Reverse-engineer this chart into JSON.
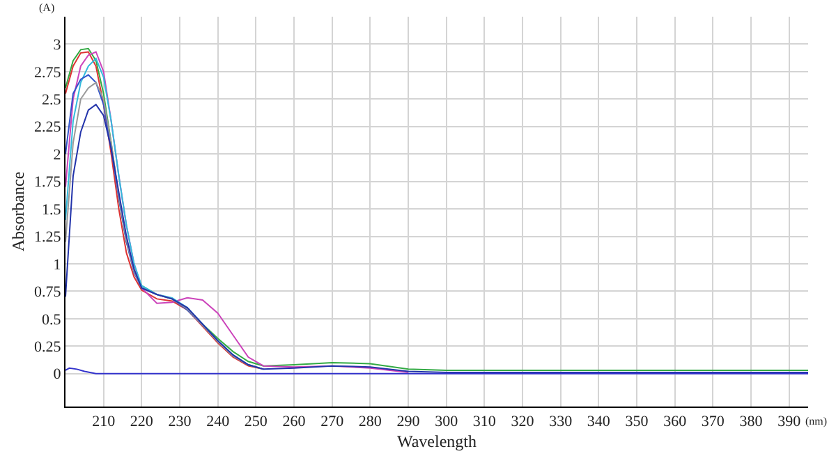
{
  "chart_data": {
    "type": "line",
    "xlabel": "Wavelength",
    "ylabel": "Absorbance",
    "annotations": [
      "(A)",
      "(nm)"
    ],
    "x": [
      200,
      202,
      204,
      206,
      208,
      210,
      212,
      214,
      216,
      218,
      220,
      224,
      228,
      232,
      236,
      240,
      244,
      248,
      252,
      260,
      270,
      280,
      290,
      300,
      340,
      395
    ],
    "series": [
      {
        "color": "#33aa44",
        "values": [
          2.6,
          2.85,
          2.95,
          2.96,
          2.85,
          2.55,
          2.1,
          1.6,
          1.2,
          0.95,
          0.8,
          0.72,
          0.68,
          0.58,
          0.45,
          0.32,
          0.2,
          0.11,
          0.07,
          0.08,
          0.1,
          0.09,
          0.04,
          0.03,
          0.03,
          0.03
        ]
      },
      {
        "color": "#dd3333",
        "values": [
          2.55,
          2.8,
          2.92,
          2.93,
          2.8,
          2.45,
          2.0,
          1.5,
          1.1,
          0.88,
          0.76,
          0.68,
          0.66,
          0.58,
          0.43,
          0.28,
          0.15,
          0.07,
          0.04,
          null,
          null,
          null,
          null,
          null,
          null,
          null
        ]
      },
      {
        "color": "#cc44bb",
        "values": [
          1.7,
          2.5,
          2.8,
          2.9,
          2.93,
          2.75,
          2.3,
          1.8,
          1.35,
          1.0,
          0.78,
          0.64,
          0.65,
          0.69,
          0.67,
          0.55,
          0.35,
          0.15,
          0.07,
          0.06,
          0.07,
          0.05,
          0.01,
          null,
          null,
          null
        ]
      },
      {
        "color": "#33bbdd",
        "values": [
          1.4,
          2.3,
          2.65,
          2.8,
          2.87,
          2.7,
          2.3,
          1.8,
          1.35,
          1.0,
          0.8,
          0.72,
          0.69,
          0.6,
          0.45,
          0.3,
          0.17,
          0.08,
          0.04,
          null,
          null,
          null,
          null,
          null,
          null,
          null
        ]
      },
      {
        "color": "#3355cc",
        "values": [
          2.0,
          2.55,
          2.68,
          2.72,
          2.65,
          2.45,
          2.05,
          1.6,
          1.2,
          0.92,
          0.78,
          0.72,
          0.68,
          0.58,
          0.44,
          0.29,
          0.16,
          0.08,
          0.04,
          null,
          null,
          null,
          null,
          null,
          null,
          null
        ]
      },
      {
        "color": "#999999",
        "values": [
          1.2,
          2.1,
          2.5,
          2.6,
          2.65,
          2.5,
          2.1,
          1.62,
          1.22,
          0.93,
          0.78,
          0.72,
          0.68,
          0.59,
          0.44,
          0.29,
          0.16,
          0.08,
          0.04,
          null,
          null,
          null,
          null,
          null,
          null,
          null
        ]
      },
      {
        "color": "#2233aa",
        "values": [
          0.7,
          1.8,
          2.2,
          2.4,
          2.45,
          2.35,
          2.05,
          1.65,
          1.25,
          0.95,
          0.78,
          0.72,
          0.68,
          0.6,
          0.45,
          0.3,
          0.17,
          0.08,
          0.04,
          0.05,
          0.07,
          0.06,
          0.02,
          0.01,
          0.01,
          0.01
        ]
      },
      {
        "color": "#3333cc",
        "x": [
          200,
          201,
          203,
          205,
          208,
          395
        ],
        "values": [
          0.03,
          0.05,
          0.04,
          0.02,
          0,
          0
        ]
      }
    ],
    "xlim": [
      200,
      395
    ],
    "ylim": [
      -0.3,
      3.25
    ],
    "xticks": [
      210,
      220,
      230,
      240,
      250,
      260,
      270,
      280,
      290,
      300,
      310,
      320,
      330,
      340,
      350,
      360,
      370,
      380,
      390
    ],
    "yticks": [
      0,
      0.25,
      0.5,
      0.75,
      1,
      1.25,
      1.5,
      1.75,
      2,
      2.25,
      2.5,
      2.75,
      3
    ],
    "grid": true,
    "line_style": "solid",
    "marker": "none"
  }
}
